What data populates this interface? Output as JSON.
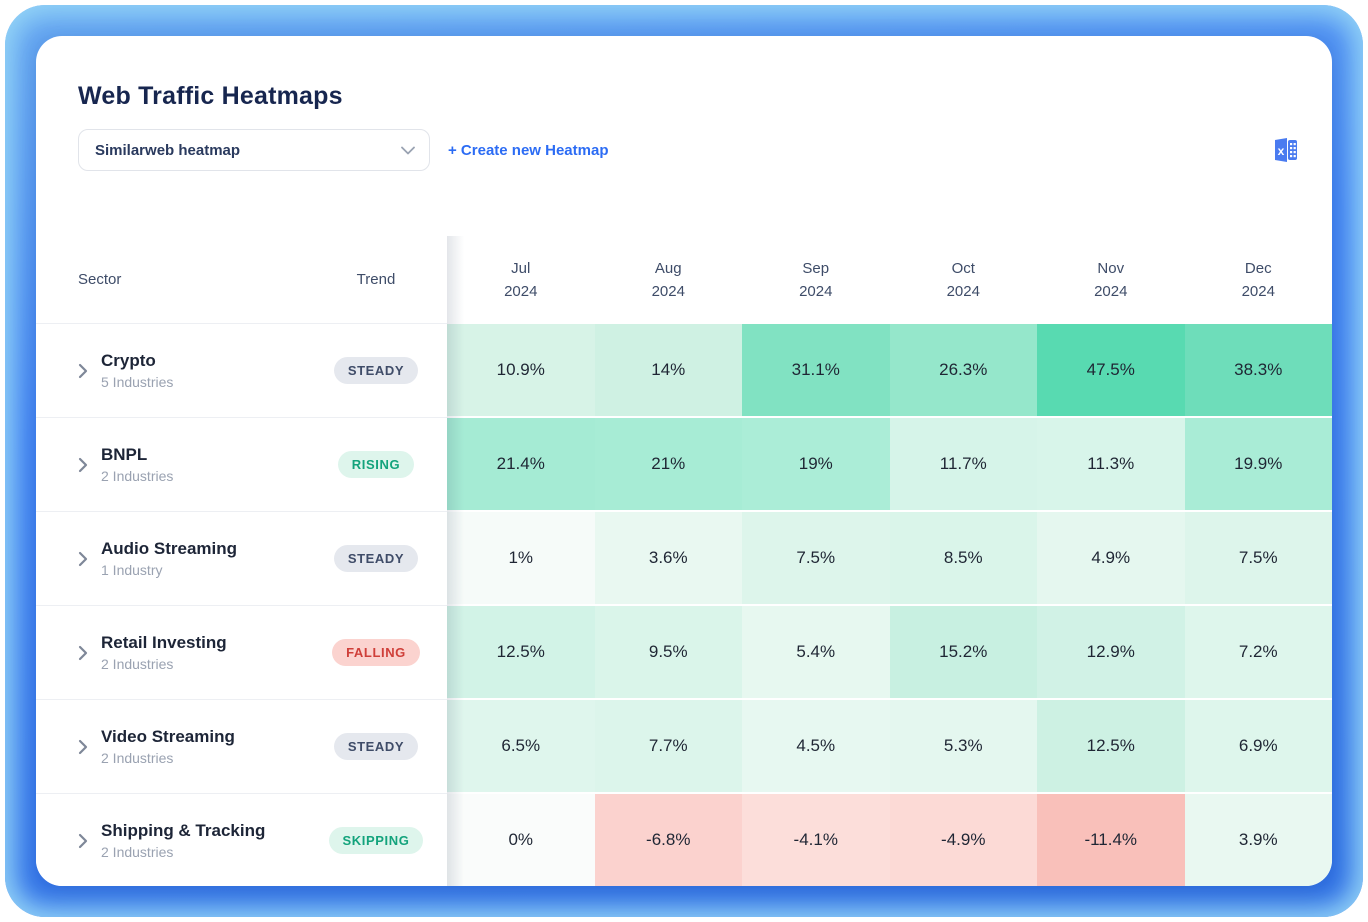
{
  "page": {
    "title": "Web Traffic Heatmaps"
  },
  "controls": {
    "heatmap_select": {
      "value": "Similarweb heatmap"
    },
    "create_link_label": "+ Create new Heatmap",
    "export_icon": "excel-export-icon"
  },
  "table": {
    "sector_header": "Sector",
    "trend_header": "Trend",
    "months": [
      {
        "label": "Jul",
        "year": "2024"
      },
      {
        "label": "Aug",
        "year": "2024"
      },
      {
        "label": "Sep",
        "year": "2024"
      },
      {
        "label": "Oct",
        "year": "2024"
      },
      {
        "label": "Nov",
        "year": "2024"
      },
      {
        "label": "Dec",
        "year": "2024"
      }
    ],
    "rows": [
      {
        "sector": "Crypto",
        "industries": "5 Industries",
        "trend": "STEADY",
        "trend_type": "steady",
        "values": [
          "10.9%",
          "14%",
          "31.1%",
          "26.3%",
          "47.5%",
          "38.3%"
        ],
        "cell_colors": [
          "#d7f3e7",
          "#cff1e3",
          "#81e2c2",
          "#95e7cb",
          "#58dab1",
          "#6eddba"
        ]
      },
      {
        "sector": "BNPL",
        "industries": "2 Industries",
        "trend": "RISING",
        "trend_type": "rising",
        "values": [
          "21.4%",
          "21%",
          "19%",
          "11.7%",
          "11.3%",
          "19.9%"
        ],
        "cell_colors": [
          "#a5ebd4",
          "#a7ecd5",
          "#abedd7",
          "#d6f4e9",
          "#d8f5ea",
          "#a9ecd6"
        ]
      },
      {
        "sector": "Audio Streaming",
        "industries": "1 Industry",
        "trend": "STEADY",
        "trend_type": "steady",
        "values": [
          "1%",
          "3.6%",
          "7.5%",
          "8.5%",
          "4.9%",
          "7.5%"
        ],
        "cell_colors": [
          "#f6fbf9",
          "#e9f8f1",
          "#ddf5eb",
          "#daf5ea",
          "#e5f7ef",
          "#ddf5eb"
        ]
      },
      {
        "sector": "Retail Investing",
        "industries": "2 Industries",
        "trend": "FALLING",
        "trend_type": "falling",
        "values": [
          "12.5%",
          "9.5%",
          "5.4%",
          "15.2%",
          "12.9%",
          "7.2%"
        ],
        "cell_colors": [
          "#d2f3e7",
          "#daf5ea",
          "#e7f8f0",
          "#c8f0e1",
          "#d1f2e6",
          "#def6ec"
        ]
      },
      {
        "sector": "Video Streaming",
        "industries": "2 Industries",
        "trend": "STEADY",
        "trend_type": "steady",
        "values": [
          "6.5%",
          "7.7%",
          "4.5%",
          "5.3%",
          "12.5%",
          "6.9%"
        ],
        "cell_colors": [
          "#dff6ed",
          "#dcf5eb",
          "#e7f8f1",
          "#e4f7ef",
          "#cdf1e3",
          "#def6ec"
        ]
      },
      {
        "sector": "Shipping & Tracking",
        "industries": "2 Industries",
        "trend": "SKIPPING",
        "trend_type": "skipping",
        "values": [
          "0%",
          "-6.8%",
          "-4.1%",
          "-4.9%",
          "-11.4%",
          "3.9%"
        ],
        "cell_colors": [
          "#fafcfb",
          "#fbd2ce",
          "#fcdeda",
          "#fcdad6",
          "#f9c0ba",
          "#e9f8f1"
        ]
      }
    ]
  },
  "badge_styles": {
    "steady": {
      "bg": "#e5e8ee",
      "fg": "#3f4c68"
    },
    "rising": {
      "bg": "#def5ec",
      "fg": "#13a37c"
    },
    "falling": {
      "bg": "#fbd3cf",
      "fg": "#cf3f39"
    },
    "skipping": {
      "bg": "#def5ec",
      "fg": "#13a37c"
    }
  },
  "theme": {
    "accent_blue": "#2c6cf4",
    "title_color": "#17264f",
    "frame_blue": "#3b7ef3"
  },
  "chart_data": {
    "type": "heatmap",
    "x": [
      "Jul 2024",
      "Aug 2024",
      "Sep 2024",
      "Oct 2024",
      "Nov 2024",
      "Dec 2024"
    ],
    "rows": [
      {
        "name": "Crypto",
        "values": [
          10.9,
          14,
          31.1,
          26.3,
          47.5,
          38.3
        ]
      },
      {
        "name": "BNPL",
        "values": [
          21.4,
          21,
          19,
          11.7,
          11.3,
          19.9
        ]
      },
      {
        "name": "Audio Streaming",
        "values": [
          1,
          3.6,
          7.5,
          8.5,
          4.9,
          7.5
        ]
      },
      {
        "name": "Retail Investing",
        "values": [
          12.5,
          9.5,
          5.4,
          15.2,
          12.9,
          7.2
        ]
      },
      {
        "name": "Video Streaming",
        "values": [
          6.5,
          7.7,
          4.5,
          5.3,
          12.5,
          6.9
        ]
      },
      {
        "name": "Shipping & Tracking",
        "values": [
          0,
          -6.8,
          -4.1,
          -4.9,
          -11.4,
          3.9
        ]
      }
    ]
  }
}
